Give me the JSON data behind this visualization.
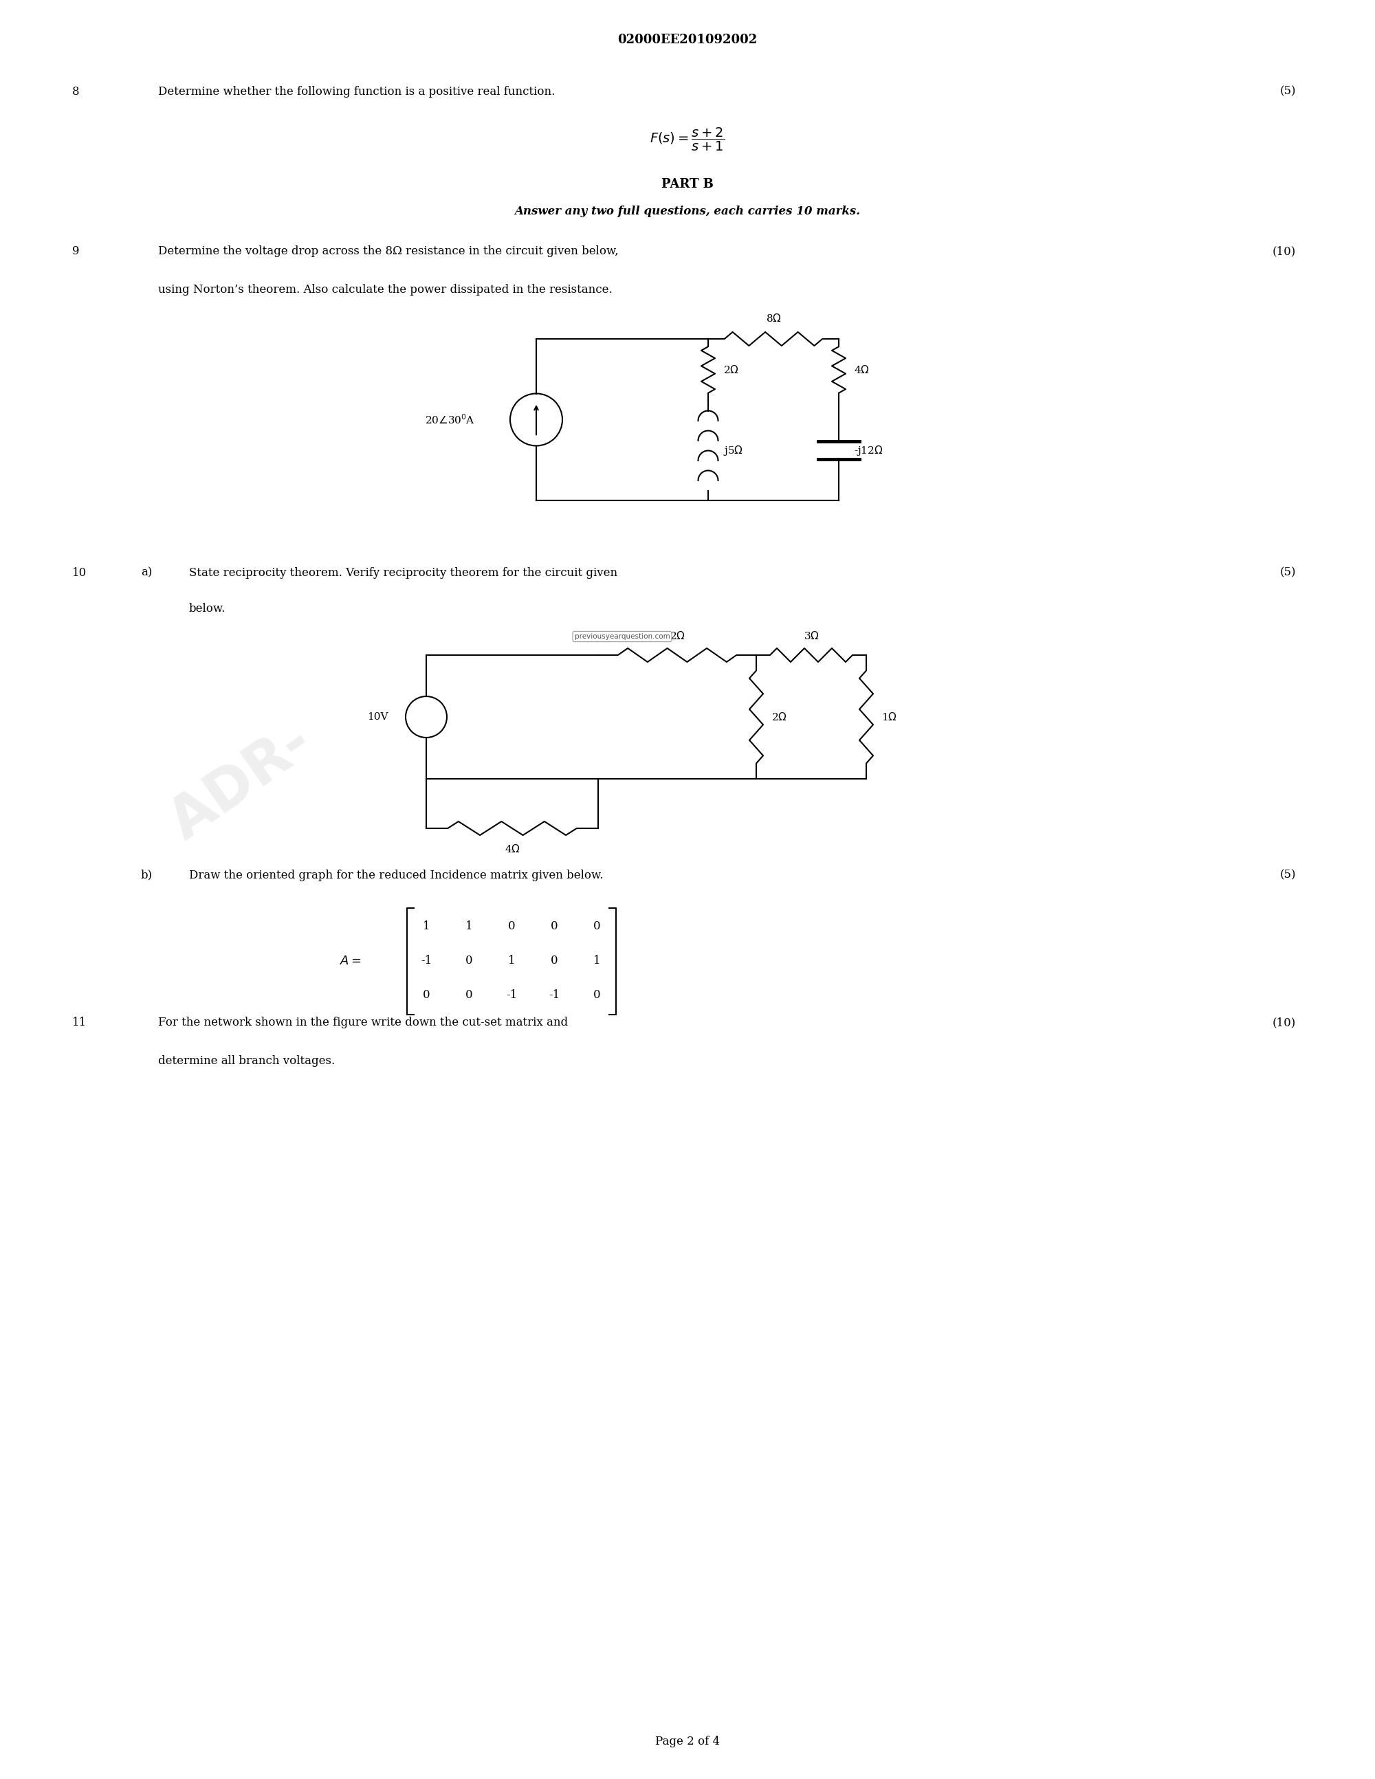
{
  "title": "02000EE201092002",
  "background_color": "#ffffff",
  "text_color": "#000000",
  "q8_number": "8",
  "q8_text": "Determine whether the following function is a positive real function.",
  "q8_marks": "(5)",
  "partB_title": "PART B",
  "partB_subtitle": "Answer any two full questions, each carries 10 marks.",
  "q9_number": "9",
  "q9_text": "Determine the voltage drop across the 8Ω resistance in the circuit given below,",
  "q9_marks": "(10)",
  "q9_text2": "using Norton’s theorem. Also calculate the power dissipated in the resistance.",
  "q10a_number": "10",
  "q10a_label": "a)",
  "q10a_text": "State reciprocity theorem. Verify reciprocity theorem for the circuit given",
  "q10a_marks": "(5)",
  "q10a_text2": "below.",
  "q10b_label": "b)",
  "q10b_text": "Draw the oriented graph for the reduced Incidence matrix given below.",
  "q10b_marks": "(5)",
  "q11_number": "11",
  "q11_text": "For the network shown in the figure write down the cut-set matrix and",
  "q11_marks": "(10)",
  "q11_text2": "determine all branch voltages.",
  "page_text": "Page 2 of 4",
  "matrix_vals": [
    [
      "1",
      "1",
      "0",
      "0",
      "0"
    ],
    [
      "-1",
      "0",
      "1",
      "0",
      "1"
    ],
    [
      "0",
      "0",
      "-1",
      "-1",
      "0"
    ]
  ]
}
